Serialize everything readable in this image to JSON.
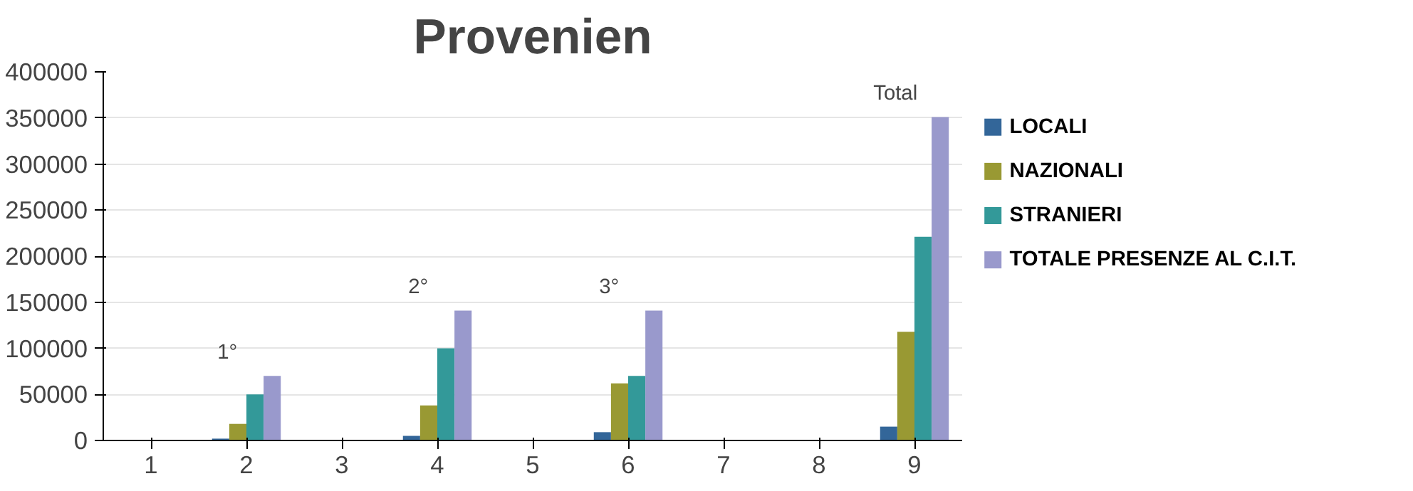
{
  "chart_data": {
    "type": "bar",
    "title": "Provenien",
    "categories": [
      "1",
      "2",
      "3",
      "4",
      "5",
      "6",
      "7",
      "8",
      "9"
    ],
    "series": [
      {
        "name": "LOCALI",
        "color": "#336699",
        "values": [
          null,
          2000,
          null,
          5000,
          null,
          9000,
          null,
          null,
          15000
        ]
      },
      {
        "name": "NAZIONALI",
        "color": "#999933",
        "values": [
          null,
          18000,
          null,
          38000,
          null,
          62000,
          null,
          null,
          118000
        ]
      },
      {
        "name": "STRANIERI",
        "color": "#339999",
        "values": [
          null,
          50000,
          null,
          100000,
          null,
          70000,
          null,
          null,
          221000
        ]
      },
      {
        "name": "TOTALE PRESENZE AL C.I.T.",
        "color": "#9999cc",
        "values": [
          null,
          70000,
          null,
          141000,
          null,
          141000,
          null,
          null,
          351000
        ]
      }
    ],
    "annotations": [
      "1°",
      "2°",
      "3°",
      "Total"
    ],
    "ylim": [
      0,
      400000
    ],
    "yticks": [
      0,
      50000,
      100000,
      150000,
      200000,
      250000,
      300000,
      350000,
      400000
    ],
    "grid": "y",
    "legend": "right"
  }
}
